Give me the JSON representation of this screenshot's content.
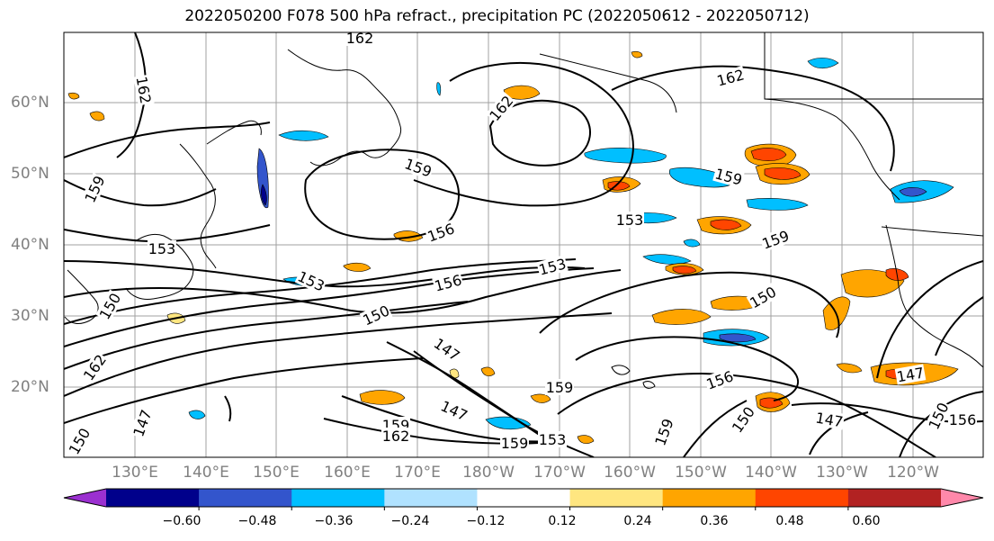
{
  "title": "2022050200 F078 500 hPa refract., precipitation PC (2022050612 - 2022050712)",
  "lat_labels": [
    "60°N",
    "50°N",
    "40°N",
    "30°N",
    "20°N"
  ],
  "lon_labels": [
    "130°E",
    "140°E",
    "150°E",
    "160°E",
    "170°E",
    "180°W",
    "170°W",
    "160°W",
    "150°W",
    "140°W",
    "130°W",
    "120°W"
  ],
  "colorbar": {
    "ticks": [
      "−0.60",
      "−0.48",
      "−0.36",
      "−0.24",
      "−0.12",
      "0.12",
      "0.24",
      "0.36",
      "0.48",
      "0.60"
    ],
    "colors": [
      "#9b30d0",
      "#00008b",
      "#3355cc",
      "#00bfff",
      "#b0e2ff",
      "#ffffff",
      "#ffe680",
      "#ffa500",
      "#ff4500",
      "#b22222",
      "#ff88aa"
    ]
  },
  "contour_labels": [
    {
      "text": "162"
    },
    {
      "text": "162"
    },
    {
      "text": "162"
    },
    {
      "text": "162"
    },
    {
      "text": "159"
    },
    {
      "text": "159"
    },
    {
      "text": "159"
    },
    {
      "text": "159"
    },
    {
      "text": "159"
    },
    {
      "text": "159"
    },
    {
      "text": "159"
    },
    {
      "text": "159"
    },
    {
      "text": "156"
    },
    {
      "text": "156"
    },
    {
      "text": "156"
    },
    {
      "text": "156"
    },
    {
      "text": "153"
    },
    {
      "text": "153"
    },
    {
      "text": "153"
    },
    {
      "text": "153"
    },
    {
      "text": "153"
    },
    {
      "text": "150"
    },
    {
      "text": "150"
    },
    {
      "text": "150"
    },
    {
      "text": "150"
    },
    {
      "text": "150"
    },
    {
      "text": "150"
    },
    {
      "text": "147"
    },
    {
      "text": "147"
    },
    {
      "text": "147"
    },
    {
      "text": "147"
    },
    {
      "text": "147"
    },
    {
      "text": "162"
    },
    {
      "text": "162"
    }
  ]
}
